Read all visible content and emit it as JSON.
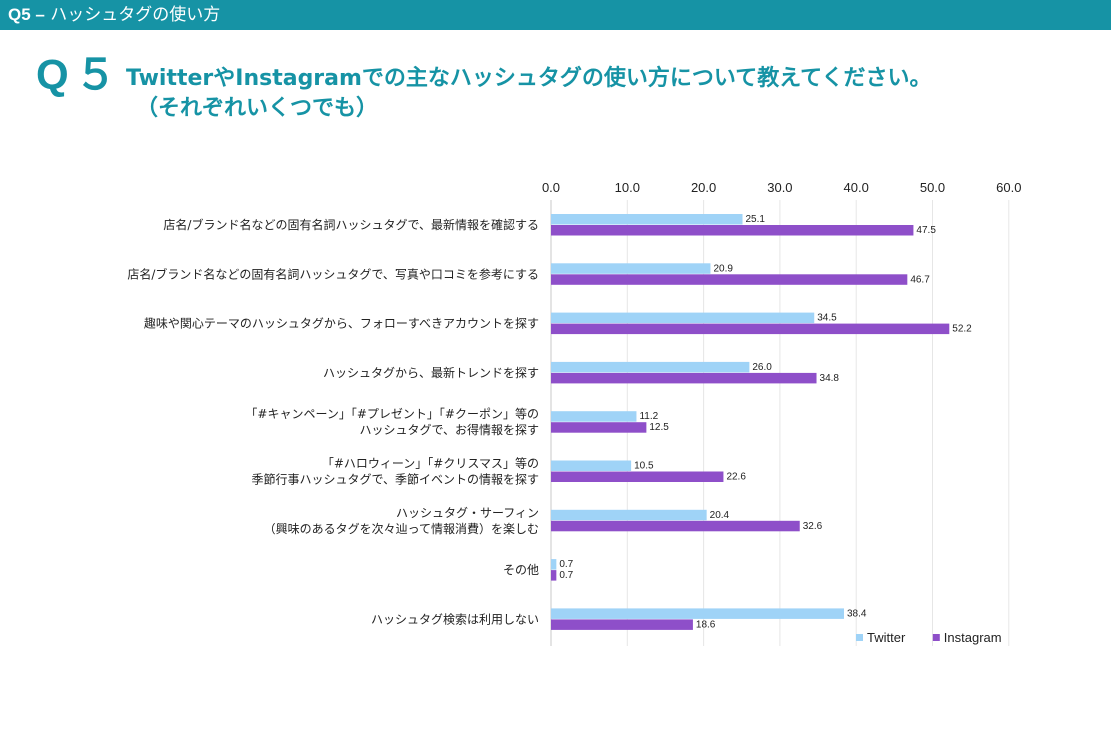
{
  "header": {
    "bar_prefix": "Q5 –",
    "bar_title": "ハッシュタグの使い方",
    "q_number": "Q５",
    "question_line1": "TwitterやInstagramでの主なハッシュタグの使い方について教えてください。",
    "question_line2": "（それぞれいくつでも）"
  },
  "colors": {
    "header_bar": "#1693a5",
    "twitter": "#9fd3f7",
    "instagram": "#8e4fc9"
  },
  "chart_data": {
    "type": "bar",
    "orientation": "horizontal",
    "xlim": [
      0,
      60
    ],
    "ticks": [
      "0.0",
      "10.0",
      "20.0",
      "30.0",
      "40.0",
      "50.0",
      "60.0"
    ],
    "grid": true,
    "legend_position": "bottom-right",
    "categories": [
      [
        "店名/ブランド名などの固有名詞ハッシュタグで、最新情報を確認する"
      ],
      [
        "店名/ブランド名などの固有名詞ハッシュタグで、写真や口コミを参考にする"
      ],
      [
        "趣味や関心テーマのハッシュタグから、フォローすべきアカウントを探す"
      ],
      [
        "ハッシュタグから、最新トレンドを探す"
      ],
      [
        "「#キャンペーン」「#プレゼント」「#クーポン」等の",
        "ハッシュタグで、お得情報を探す"
      ],
      [
        "「#ハロウィーン」「#クリスマス」等の",
        "季節行事ハッシュタグで、季節イベントの情報を探す"
      ],
      [
        "ハッシュタグ・サーフィン",
        "（興味のあるタグを次々辿って情報消費）を楽しむ"
      ],
      [
        "その他"
      ],
      [
        "ハッシュタグ検索は利用しない"
      ]
    ],
    "series": [
      {
        "name": "Twitter",
        "values": [
          25.1,
          20.9,
          34.5,
          26.0,
          11.2,
          10.5,
          20.4,
          0.7,
          38.4
        ],
        "labels": [
          "25.1",
          "20.9",
          "34.5",
          "26.0",
          "11.2",
          "10.5",
          "20.4",
          "0.7",
          "38.4"
        ]
      },
      {
        "name": "Instagram",
        "values": [
          47.5,
          46.7,
          52.2,
          34.8,
          12.5,
          22.6,
          32.6,
          0.7,
          18.6
        ],
        "labels": [
          "47.5",
          "46.7",
          "52.2",
          "34.8",
          "12.5",
          "22.6",
          "32.6",
          "0.7",
          "18.6"
        ]
      }
    ]
  }
}
